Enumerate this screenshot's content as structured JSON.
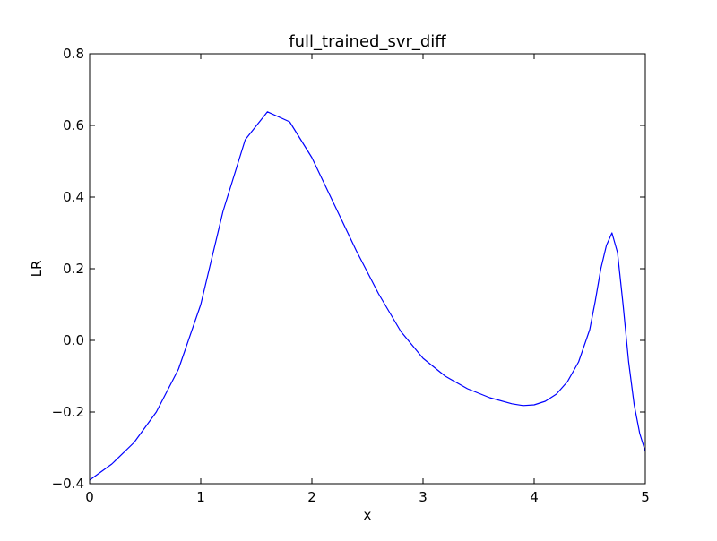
{
  "chart_data": {
    "type": "line",
    "title": "full_trained_svr_diff",
    "xlabel": "x",
    "ylabel": "LR",
    "xlim": [
      0,
      5
    ],
    "ylim": [
      -0.4,
      0.8
    ],
    "xticks": [
      0,
      1,
      2,
      3,
      4,
      5
    ],
    "xtick_labels": [
      "0",
      "1",
      "2",
      "3",
      "4",
      "5"
    ],
    "yticks": [
      -0.4,
      -0.2,
      0.0,
      0.2,
      0.4,
      0.6,
      0.8
    ],
    "ytick_labels": [
      "−0.4",
      "−0.2",
      "0.0",
      "0.2",
      "0.4",
      "0.6",
      "0.8"
    ],
    "grid": false,
    "legend": "none",
    "series": [
      {
        "color": "#0000ff",
        "x": [
          0.0,
          0.2,
          0.4,
          0.6,
          0.8,
          1.0,
          1.2,
          1.4,
          1.6,
          1.8,
          2.0,
          2.2,
          2.4,
          2.6,
          2.8,
          3.0,
          3.2,
          3.4,
          3.6,
          3.8,
          3.9,
          4.0,
          4.1,
          4.2,
          4.3,
          4.4,
          4.5,
          4.55,
          4.6,
          4.65,
          4.7,
          4.75,
          4.8,
          4.85,
          4.9,
          4.95,
          5.0
        ],
        "y": [
          -0.39,
          -0.345,
          -0.285,
          -0.2,
          -0.08,
          0.1,
          0.36,
          0.56,
          0.638,
          0.61,
          0.51,
          0.38,
          0.25,
          0.13,
          0.025,
          -0.05,
          -0.1,
          -0.135,
          -0.16,
          -0.177,
          -0.182,
          -0.18,
          -0.17,
          -0.15,
          -0.115,
          -0.06,
          0.03,
          0.11,
          0.2,
          0.265,
          0.3,
          0.245,
          0.1,
          -0.06,
          -0.18,
          -0.26,
          -0.31
        ]
      }
    ]
  }
}
